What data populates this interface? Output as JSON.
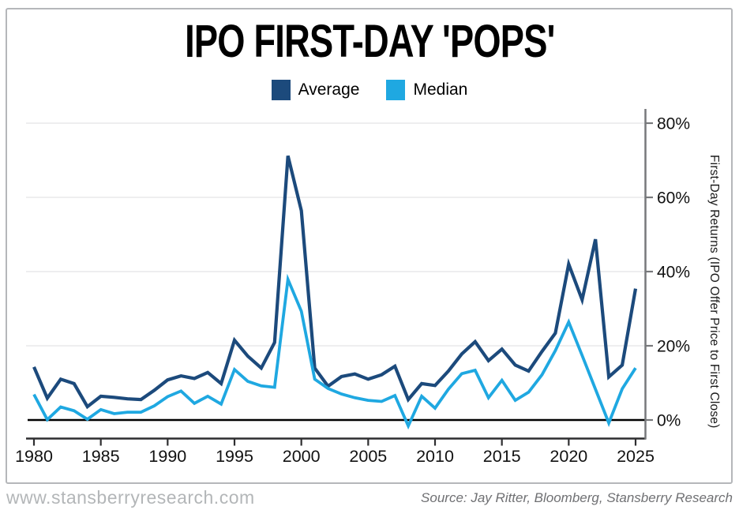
{
  "header": {
    "title": "IPO FIRST-DAY 'POPS'"
  },
  "legend": [
    {
      "label": "Average",
      "color": "#1c4a7c"
    },
    {
      "label": "Median",
      "color": "#1fa8e1"
    }
  ],
  "chart_data": {
    "type": "line",
    "title": "IPO FIRST-DAY 'POPS'",
    "ylabel": "First-Day Returns (IPO Offer Price to First Close)",
    "xlabel": "",
    "grid": "horizontal",
    "legend_position": "top-center",
    "xlim": [
      1980,
      2025
    ],
    "ylim": [
      -3,
      83
    ],
    "x": [
      1980,
      1981,
      1982,
      1983,
      1984,
      1985,
      1986,
      1987,
      1988,
      1989,
      1990,
      1991,
      1992,
      1993,
      1994,
      1995,
      1996,
      1997,
      1998,
      1999,
      2000,
      2001,
      2002,
      2003,
      2004,
      2005,
      2006,
      2007,
      2008,
      2009,
      2010,
      2011,
      2012,
      2013,
      2014,
      2015,
      2016,
      2017,
      2018,
      2019,
      2020,
      2021,
      2022,
      2023,
      2024,
      2025
    ],
    "series": [
      {
        "name": "Average",
        "color": "#1c4a7c",
        "width": 4.2,
        "values": [
          14.3,
          5.9,
          11.0,
          9.8,
          3.6,
          6.4,
          6.1,
          5.7,
          5.5,
          8.0,
          10.8,
          11.9,
          11.2,
          12.8,
          9.8,
          21.5,
          17.2,
          14.0,
          20.9,
          71.2,
          56.4,
          14.0,
          9.1,
          11.7,
          12.4,
          11.0,
          12.2,
          14.5,
          5.5,
          9.8,
          9.3,
          13.2,
          17.8,
          21.1,
          16.0,
          19.1,
          14.8,
          13.2,
          18.5,
          23.4,
          42.0,
          32.4,
          48.7,
          11.6,
          14.8,
          35.4
        ]
      },
      {
        "name": "Median",
        "color": "#1fa8e1",
        "width": 3.8,
        "values": [
          6.9,
          0.1,
          3.5,
          2.5,
          0.2,
          2.8,
          1.7,
          2.1,
          2.1,
          3.8,
          6.3,
          7.8,
          4.5,
          6.4,
          4.3,
          13.6,
          10.4,
          9.2,
          8.8,
          37.9,
          29.3,
          11.0,
          8.5,
          7.0,
          6.0,
          5.3,
          5.0,
          6.6,
          -1.6,
          6.4,
          3.2,
          8.3,
          12.5,
          13.4,
          6.0,
          10.7,
          5.3,
          7.5,
          12.2,
          18.7,
          26.4,
          17.4,
          8.3,
          -0.8,
          8.4,
          14.0
        ]
      }
    ],
    "x_ticks": [
      1980,
      1985,
      1990,
      1995,
      2000,
      2005,
      2010,
      2015,
      2020,
      2025
    ],
    "x_tick_labels": [
      "1980",
      "1985",
      "1990",
      "1995",
      "2000",
      "2005",
      "2010",
      "2015",
      "2020",
      "2025"
    ],
    "y_ticks": [
      0,
      20,
      40,
      60,
      80
    ],
    "y_tick_labels": [
      "0%",
      "20%",
      "40%",
      "60%",
      "80%"
    ],
    "zero_line_color": "#000000",
    "gridline_color": "#e8e9ea",
    "x_axis_color": "#2e2e30",
    "y_axis_color": "#77787b",
    "tick_label_color": "#121212"
  },
  "footer": {
    "website": "www.stansberryresearch.com",
    "source": "Source: Jay Ritter, Bloomberg, Stansberry Research"
  }
}
